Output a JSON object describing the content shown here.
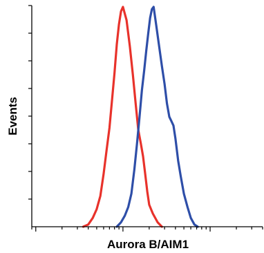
{
  "chart_data": {
    "type": "line",
    "xlabel": "Aurora B/AIM1",
    "ylabel": "Events",
    "x_scale": "log",
    "xlim": [
      0.09,
      40
    ],
    "ylim": [
      0,
      100
    ],
    "grid": false,
    "colors": {
      "red_series": "#e8322b",
      "blue_series": "#2e4ea8"
    },
    "series": [
      {
        "color": "#e8322b",
        "points": [
          [
            0.35,
            0
          ],
          [
            0.4,
            1
          ],
          [
            0.45,
            4
          ],
          [
            0.5,
            8
          ],
          [
            0.55,
            14
          ],
          [
            0.6,
            24
          ],
          [
            0.65,
            35
          ],
          [
            0.7,
            45
          ],
          [
            0.75,
            58
          ],
          [
            0.8,
            70
          ],
          [
            0.85,
            83
          ],
          [
            0.9,
            92
          ],
          [
            0.95,
            98
          ],
          [
            1.0,
            100
          ],
          [
            1.1,
            94
          ],
          [
            1.2,
            82
          ],
          [
            1.3,
            69
          ],
          [
            1.4,
            56
          ],
          [
            1.5,
            44
          ],
          [
            1.6,
            38
          ],
          [
            1.7,
            32
          ],
          [
            1.8,
            24
          ],
          [
            1.9,
            16
          ],
          [
            2.0,
            10
          ],
          [
            2.2,
            6
          ],
          [
            2.5,
            2
          ],
          [
            2.8,
            0
          ]
        ]
      },
      {
        "color": "#2e4ea8",
        "points": [
          [
            0.85,
            0
          ],
          [
            0.95,
            2
          ],
          [
            1.05,
            5
          ],
          [
            1.15,
            9
          ],
          [
            1.25,
            15
          ],
          [
            1.35,
            26
          ],
          [
            1.45,
            38
          ],
          [
            1.55,
            50
          ],
          [
            1.65,
            62
          ],
          [
            1.75,
            71
          ],
          [
            1.85,
            80
          ],
          [
            1.95,
            88
          ],
          [
            2.05,
            95
          ],
          [
            2.15,
            99
          ],
          [
            2.25,
            100
          ],
          [
            2.4,
            92
          ],
          [
            2.6,
            82
          ],
          [
            2.8,
            73
          ],
          [
            3.0,
            65
          ],
          [
            3.2,
            56
          ],
          [
            3.4,
            50
          ],
          [
            3.6,
            48
          ],
          [
            3.8,
            46
          ],
          [
            4.0,
            40
          ],
          [
            4.3,
            30
          ],
          [
            4.6,
            23
          ],
          [
            5.0,
            15
          ],
          [
            5.5,
            9
          ],
          [
            6.0,
            4
          ],
          [
            6.6,
            1
          ],
          [
            7.2,
            0
          ]
        ]
      }
    ]
  }
}
